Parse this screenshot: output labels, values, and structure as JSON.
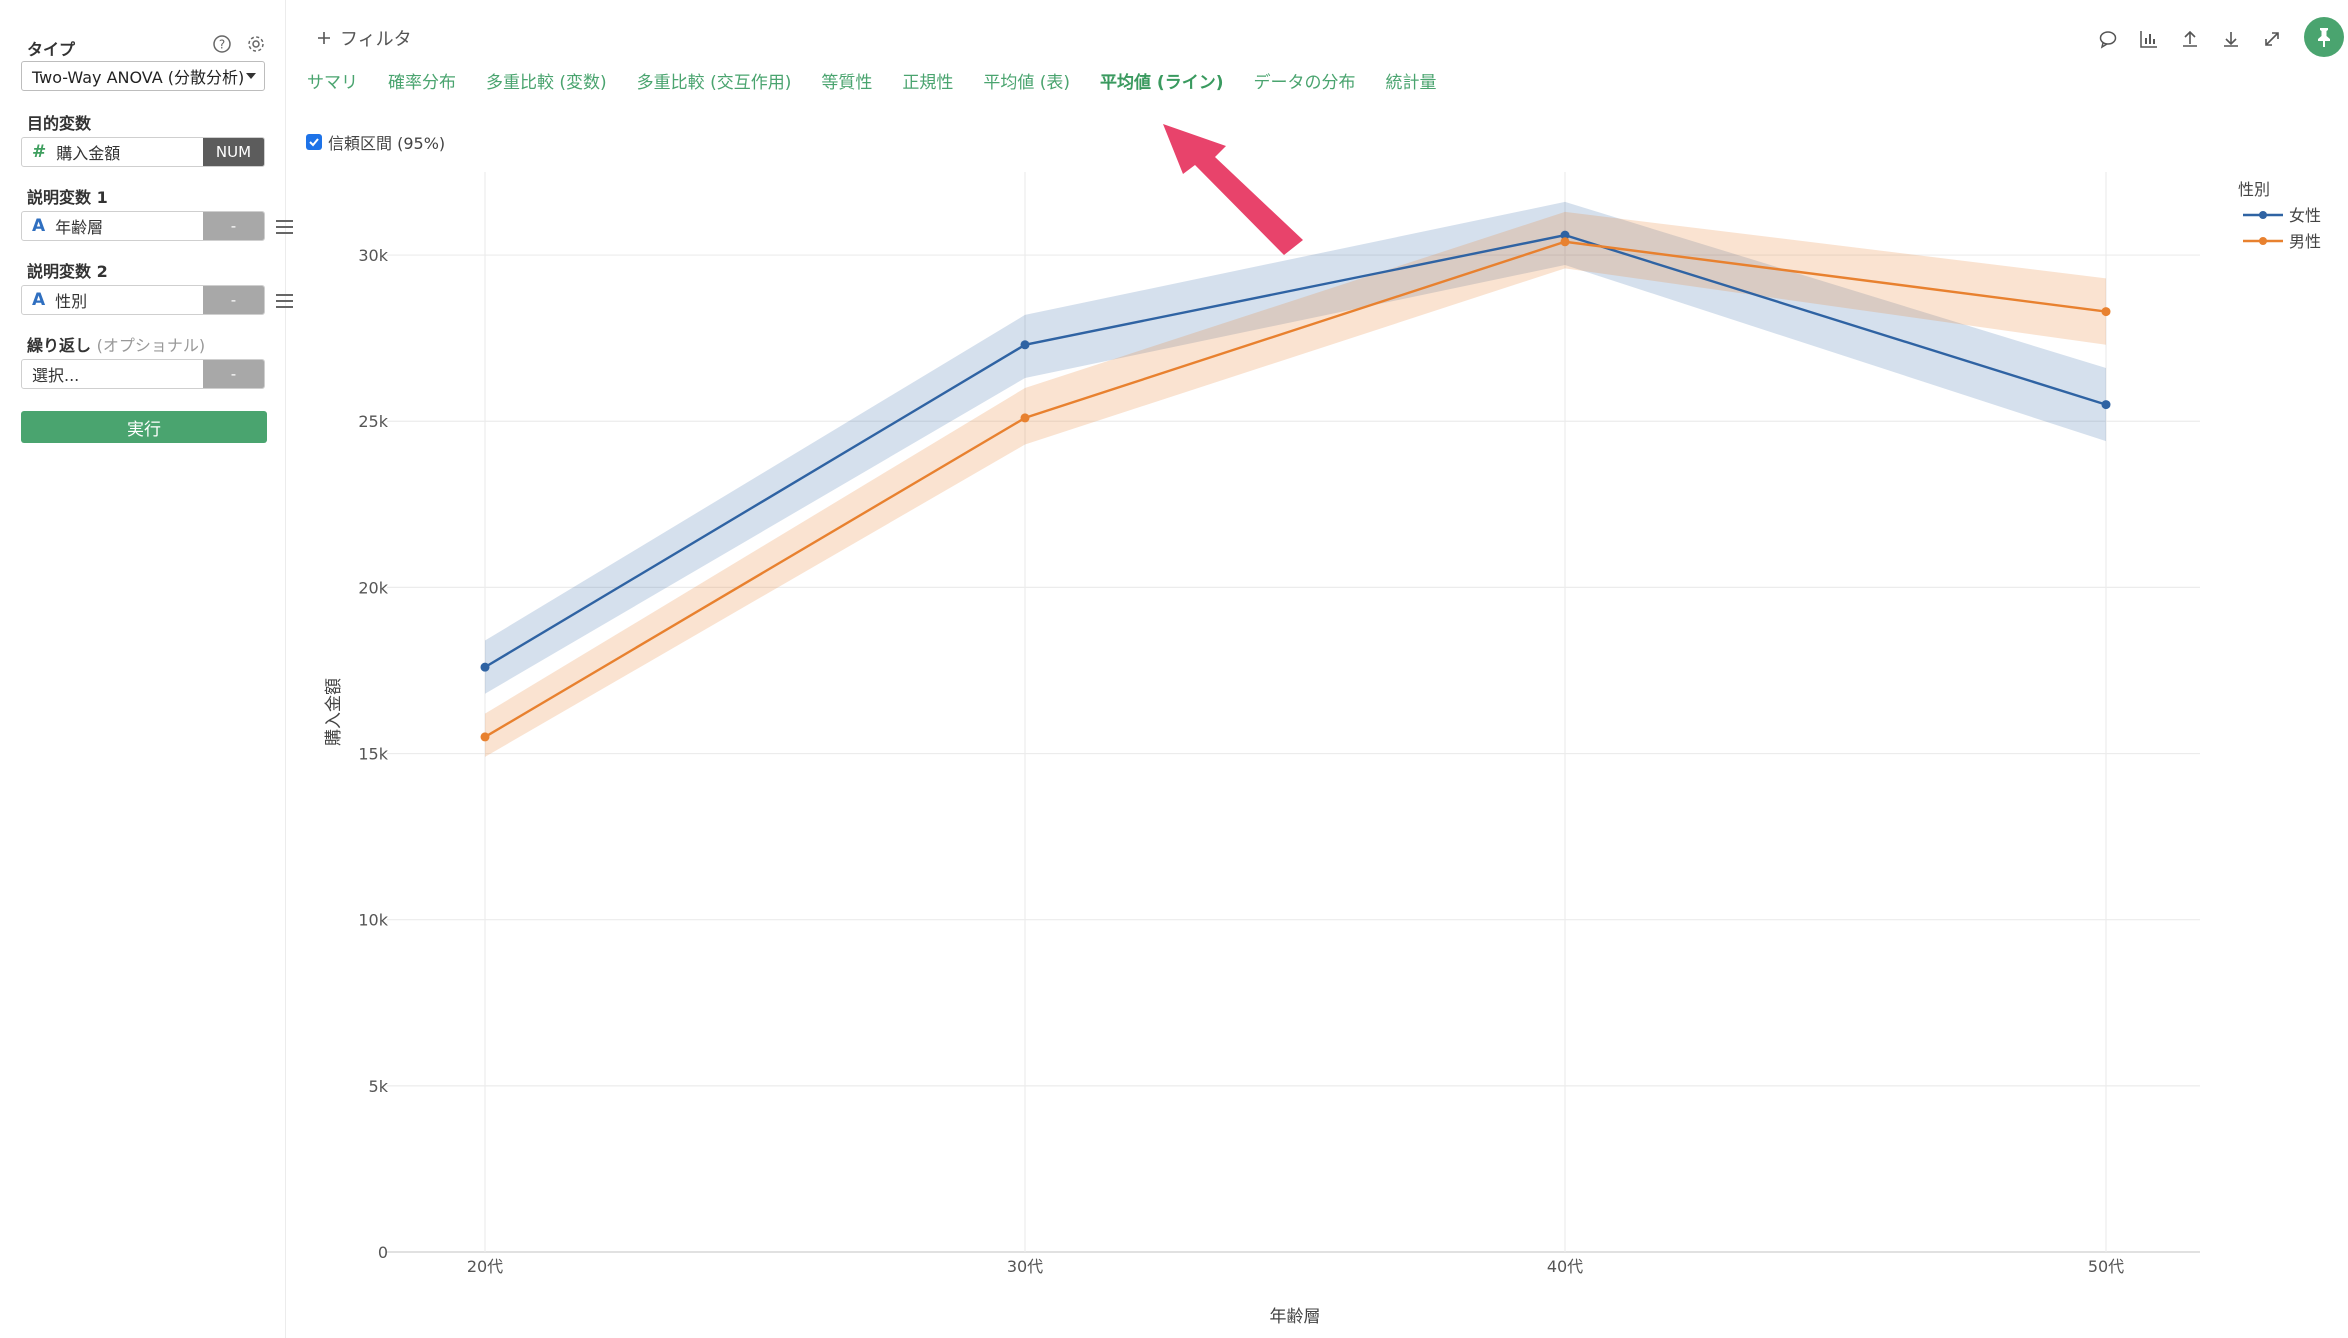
{
  "sidebar": {
    "type_label": "タイプ",
    "type_value": "Two-Way ANOVA (分散分析)",
    "target_label": "目的変数",
    "target_field": "購入金額",
    "target_tag": "NUM",
    "exp1_label": "説明変数 1",
    "exp1_field": "年齢層",
    "exp1_tag": "-",
    "exp2_label": "説明変数 2",
    "exp2_field": "性別",
    "exp2_tag": "-",
    "repeat_label": "繰り返し",
    "repeat_optional": "(オプショナル)",
    "repeat_placeholder": "選択...",
    "repeat_tag": "-",
    "run_label": "実行"
  },
  "header": {
    "filter_label": "フィルタ",
    "tabs": [
      "サマリ",
      "確率分布",
      "多重比較 (変数)",
      "多重比較 (交互作用)",
      "等質性",
      "正規性",
      "平均値 (表)",
      "平均値 (ライン)",
      "データの分布",
      "統計量"
    ],
    "active_tab": 7,
    "ci_label": "信頼区間 (95%)"
  },
  "icons": [
    "comment-icon",
    "chart-icon",
    "upload-icon",
    "download-icon",
    "expand-icon",
    "pin-icon"
  ],
  "colors": {
    "accent": "#4aa46f",
    "series_female": "#2f63a3",
    "series_male": "#e8812f",
    "annotation_arrow": "#e8436b"
  },
  "chart_data": {
    "type": "line",
    "categories": [
      "20代",
      "30代",
      "40代",
      "50代"
    ],
    "xlabel": "年齢層",
    "ylabel": "購入金額",
    "ylim": [
      0,
      32500
    ],
    "yticks": [
      0,
      5000,
      10000,
      15000,
      20000,
      25000,
      30000
    ],
    "ytick_labels": [
      "0",
      "5k",
      "10k",
      "15k",
      "20k",
      "25k",
      "30k"
    ],
    "legend_title": "性別",
    "legend_position": "top-right",
    "grid": true,
    "series": [
      {
        "name": "女性",
        "values": [
          17600,
          27300,
          30600,
          25500
        ],
        "ci_low": [
          16800,
          26300,
          29700,
          24400
        ],
        "ci_high": [
          18400,
          28200,
          31600,
          26600
        ]
      },
      {
        "name": "男性",
        "values": [
          15500,
          25100,
          30400,
          28300
        ],
        "ci_low": [
          14900,
          24300,
          29600,
          27300
        ],
        "ci_high": [
          16200,
          26000,
          31300,
          29300
        ]
      }
    ]
  }
}
